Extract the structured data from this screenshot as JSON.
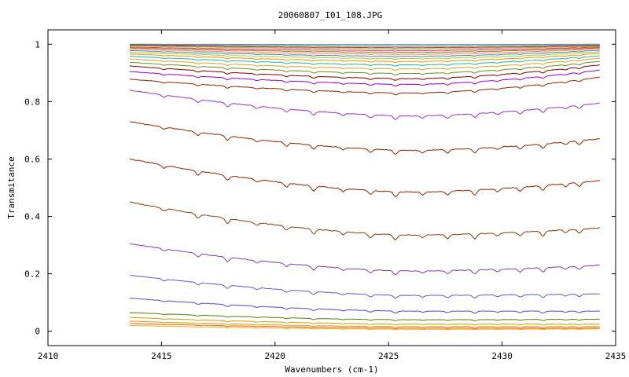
{
  "chart_data": {
    "type": "line",
    "title": "20060807_I01_108.JPG",
    "xlabel": "Wavenumbers (cm-1)",
    "ylabel": "Transmitance",
    "xlim": [
      2410,
      2435
    ],
    "ylim": [
      -0.05,
      1.05
    ],
    "x_ticks": [
      "2410",
      "2415",
      "2420",
      "2425",
      "2430",
      "2435"
    ],
    "y_ticks": [
      "0",
      "0.2",
      "0.4",
      "0.6",
      "0.8",
      "1"
    ],
    "x_range": [
      2413.6,
      2434.3
    ],
    "grid": false,
    "legend": "none",
    "absorption_lines": [
      2415.1,
      2416.6,
      2417.9,
      2419.2,
      2420.5,
      2421.7,
      2423.0,
      2424.2,
      2425.3,
      2426.5,
      2427.6,
      2428.8,
      2429.8,
      2430.8,
      2431.8,
      2432.8,
      2433.4
    ],
    "series": [
      {
        "start": 1.0,
        "min": 0.999,
        "end": 1.0,
        "color": "#1f9f9f"
      },
      {
        "start": 0.998,
        "min": 0.993,
        "end": 0.997,
        "color": "#c81e6e"
      },
      {
        "start": 0.996,
        "min": 0.988,
        "end": 0.995,
        "color": "#2a8a2a"
      },
      {
        "start": 0.994,
        "min": 0.984,
        "end": 0.993,
        "color": "#d4a017"
      },
      {
        "start": 0.99,
        "min": 0.978,
        "end": 0.99,
        "color": "#ff1493"
      },
      {
        "start": 0.987,
        "min": 0.972,
        "end": 0.987,
        "color": "#808000"
      },
      {
        "start": 0.983,
        "min": 0.965,
        "end": 0.984,
        "color": "#ff7f50"
      },
      {
        "start": 0.978,
        "min": 0.958,
        "end": 0.979,
        "color": "#4682b4"
      },
      {
        "start": 0.972,
        "min": 0.95,
        "end": 0.974,
        "color": "#9acd32"
      },
      {
        "start": 0.966,
        "min": 0.94,
        "end": 0.968,
        "color": "#ff8c00"
      },
      {
        "start": 0.958,
        "min": 0.928,
        "end": 0.96,
        "color": "#20b2aa"
      },
      {
        "start": 0.948,
        "min": 0.914,
        "end": 0.951,
        "color": "#daa520"
      },
      {
        "start": 0.937,
        "min": 0.898,
        "end": 0.94,
        "color": "#6b8e23"
      },
      {
        "start": 0.924,
        "min": 0.88,
        "end": 0.928,
        "color": "#800000"
      },
      {
        "start": 0.905,
        "min": 0.86,
        "end": 0.91,
        "color": "#9400d3"
      },
      {
        "start": 0.878,
        "min": 0.83,
        "end": 0.885,
        "color": "#8b2500"
      },
      {
        "start": 0.84,
        "min": 0.75,
        "end": 0.795,
        "color": "#9932cc"
      },
      {
        "start": 0.73,
        "min": 0.63,
        "end": 0.67,
        "color": "#8b2500"
      },
      {
        "start": 0.6,
        "min": 0.485,
        "end": 0.525,
        "color": "#8b2500"
      },
      {
        "start": 0.45,
        "min": 0.335,
        "end": 0.36,
        "color": "#8b3a0a"
      },
      {
        "start": 0.305,
        "min": 0.21,
        "end": 0.23,
        "color": "#7b3fa0"
      },
      {
        "start": 0.195,
        "min": 0.125,
        "end": 0.13,
        "color": "#5a5ad0"
      },
      {
        "start": 0.115,
        "min": 0.07,
        "end": 0.07,
        "color": "#4b4bd0"
      },
      {
        "start": 0.065,
        "min": 0.04,
        "end": 0.042,
        "color": "#5a7a10"
      },
      {
        "start": 0.048,
        "min": 0.025,
        "end": 0.025,
        "color": "#c8a000"
      },
      {
        "start": 0.035,
        "min": 0.016,
        "end": 0.016,
        "color": "#ff8c00"
      },
      {
        "start": 0.027,
        "min": 0.011,
        "end": 0.011,
        "color": "#e06020"
      },
      {
        "start": 0.02,
        "min": 0.007,
        "end": 0.008,
        "color": "#ffb000"
      }
    ]
  }
}
